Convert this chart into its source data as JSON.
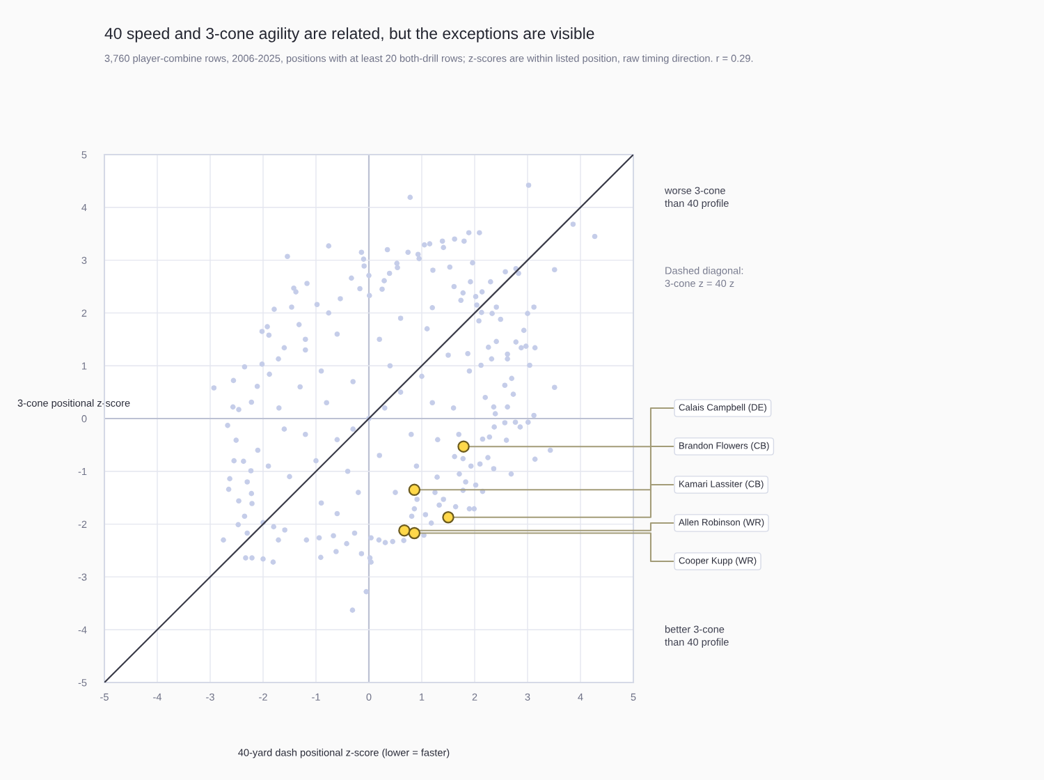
{
  "chart_data": {
    "type": "scatter",
    "title": "40 speed and 3-cone agility are related, but the exceptions are visible",
    "subtitle": "3,760 player-combine rows, 2006-2025, positions with at least 20 both-drill rows; z-scores are within listed position, raw timing direction. r = 0.29.",
    "xlabel": "40-yard dash positional z-score (lower = faster)",
    "ylabel": "3-cone positional z-score",
    "xlim": [
      -5,
      5
    ],
    "ylim": [
      -5,
      5
    ],
    "xticks": [
      -5,
      -4,
      -3,
      -2,
      -1,
      0,
      1,
      2,
      3,
      4,
      5
    ],
    "yticks": [
      -5,
      -4,
      -3,
      -2,
      -1,
      0,
      1,
      2,
      3,
      4,
      5
    ],
    "grid": true,
    "marker": "circle",
    "series": [
      {
        "color": "#c5cde9",
        "x": [
          -0.76,
          -1.54,
          -0.14,
          -1.17,
          -1.42,
          -1.38,
          -1.79,
          -1.46,
          -2.02,
          -1.92,
          -1.89,
          -2.35,
          -2.56,
          -2.93,
          -2.57,
          -2.46,
          -2.22,
          -2.02,
          -1.6,
          -0.98,
          -0.54,
          -0.33,
          -0.17,
          -0.1,
          -0.09,
          -0.76,
          -1.32,
          -1.2,
          -1.71,
          -1.88,
          -2.11,
          3.02,
          0.78,
          3.86,
          4.27,
          1.89,
          2.09,
          1.62,
          1.8,
          1.39,
          1.41,
          1.05,
          1.15,
          0.35,
          0.74,
          0.93,
          0.95,
          1.96,
          3.51,
          2.78,
          2.83,
          2.58,
          1.53,
          3.12,
          3.0,
          2.3,
          1.92,
          1.78,
          2.14,
          2.41,
          2.49,
          2.93,
          3.14,
          2.97,
          2.88,
          2.78,
          3.04,
          3.51,
          3.12,
          2.62,
          2.62,
          2.7,
          2.73,
          2.57,
          2.36,
          2.62,
          2.02,
          2.04,
          1.74,
          1.61,
          1.21,
          0.53,
          0.54,
          0.29,
          0.39,
          0.25,
          0.0,
          0.01,
          2.33,
          2.13,
          2.08,
          2.32,
          2.12,
          1.87,
          2.26,
          2.41,
          2.39,
          -2.75,
          -2.33,
          -2.21,
          -2.0,
          -1.81,
          -2.47,
          -2.3,
          -1.71,
          -1.59,
          -0.91,
          -0.31,
          -0.05,
          -0.42,
          -0.14,
          -0.62,
          -1.18,
          -0.94,
          -0.67,
          -0.27,
          -2.65,
          -2.63,
          -2.67,
          -2.51,
          -2.55,
          -2.37,
          -2.23,
          -2.46,
          -2.35,
          -2.22,
          -2.21,
          -2.0,
          -1.8,
          3.43,
          3.14,
          3.01,
          2.77,
          2.57,
          2.86,
          2.6,
          2.69,
          2.36,
          2.25,
          2.15,
          2.02,
          2.1,
          1.99,
          1.9,
          2.37,
          2.28,
          2.15,
          1.64,
          1.78,
          1.83,
          1.71,
          1.93,
          1.18,
          1.04,
          0.66,
          0.45,
          0.31,
          0.19,
          0.04,
          0.04,
          0.02,
          1.07,
          1.41,
          1.33,
          0.81,
          0.86,
          0.91,
          1.25,
          1.29,
          1.78,
          1.62,
          0.0,
          0.3,
          -0.3,
          0.6,
          -0.6,
          1.0,
          -1.0,
          1.2,
          -1.2,
          0.4,
          -0.4,
          0.8,
          -0.8,
          1.5,
          -1.5,
          0.2,
          -0.2,
          1.6,
          -1.6,
          0.9,
          -0.9,
          1.9,
          -1.9,
          0.6,
          -0.6,
          2.2,
          -2.1,
          1.3,
          1.1,
          -1.2,
          -1.3,
          0.2,
          -0.3,
          1.7,
          -1.7,
          -2.3,
          0.5,
          -0.9,
          1.2,
          -0.6
        ],
        "values": [
          3.27,
          3.07,
          3.15,
          2.56,
          2.47,
          2.4,
          2.07,
          2.11,
          1.65,
          1.74,
          1.58,
          0.98,
          0.72,
          0.58,
          0.22,
          0.17,
          0.31,
          1.03,
          1.34,
          2.16,
          2.27,
          2.66,
          2.46,
          3.02,
          2.89,
          2.0,
          1.78,
          1.5,
          1.13,
          0.84,
          0.61,
          4.42,
          4.19,
          3.68,
          3.45,
          3.52,
          3.52,
          3.4,
          3.36,
          3.36,
          3.24,
          3.29,
          3.31,
          3.2,
          3.15,
          3.11,
          3.03,
          2.95,
          2.82,
          2.84,
          2.75,
          2.78,
          2.87,
          2.11,
          1.99,
          2.59,
          2.59,
          2.38,
          2.4,
          2.11,
          1.88,
          1.67,
          1.34,
          1.37,
          1.34,
          1.45,
          1.01,
          0.59,
          0.06,
          1.22,
          1.13,
          0.76,
          0.46,
          0.63,
          0.22,
          0.22,
          2.31,
          2.15,
          2.24,
          2.5,
          2.81,
          2.94,
          2.86,
          2.61,
          2.75,
          2.45,
          2.71,
          2.33,
          1.99,
          2.01,
          1.85,
          1.13,
          1.01,
          1.23,
          1.35,
          1.46,
          0.09,
          -2.3,
          -2.64,
          -2.64,
          -2.66,
          -2.72,
          -2.01,
          -2.17,
          -2.3,
          -2.11,
          -2.63,
          -3.63,
          -3.28,
          -2.37,
          -2.56,
          -2.52,
          -2.3,
          -2.26,
          -2.22,
          -2.17,
          -1.34,
          -1.14,
          -0.13,
          -0.41,
          -0.8,
          -0.81,
          -0.99,
          -1.56,
          -1.85,
          -1.42,
          -1.61,
          -1.97,
          -2.05,
          -0.6,
          -0.77,
          -0.07,
          -0.07,
          -0.08,
          -0.16,
          -0.41,
          -1.05,
          -0.95,
          -0.74,
          -1.38,
          -1.26,
          -0.86,
          -1.71,
          -1.71,
          -0.16,
          -0.35,
          -0.39,
          -1.67,
          -1.36,
          -1.2,
          -1.05,
          -0.9,
          -1.98,
          -2.21,
          -2.31,
          -2.33,
          -2.35,
          -2.3,
          -2.26,
          -2.72,
          -2.64,
          -1.82,
          -1.53,
          -1.64,
          -1.85,
          -1.71,
          -1.53,
          -1.4,
          -1.11,
          -0.76,
          -0.72,
          0.0,
          0.2,
          -0.2,
          0.5,
          -0.4,
          0.8,
          -0.8,
          0.3,
          -0.3,
          1.0,
          -1.0,
          -0.3,
          0.3,
          1.2,
          -1.1,
          1.5,
          -1.4,
          0.2,
          -0.2,
          -0.9,
          0.9,
          0.9,
          -0.9,
          1.9,
          -1.8,
          0.4,
          -0.6,
          -0.4,
          1.7,
          1.3,
          0.6,
          -0.7,
          0.7,
          -0.3,
          0.2,
          -1.2,
          -1.4,
          -1.6,
          2.1,
          1.6
        ]
      },
      {
        "type": "line",
        "color": "#3a3b48",
        "marker": "none",
        "line_style": "solid",
        "x": [
          -5,
          5
        ],
        "values": [
          -5,
          5
        ]
      }
    ],
    "annotations": [
      {
        "text": "Calais Campbell (DE)",
        "x": 1.79,
        "y": -0.53
      },
      {
        "text": "Brandon Flowers (CB)",
        "x": 0.86,
        "y": -1.35
      },
      {
        "text": "Kamari Lassiter (CB)",
        "x": 1.5,
        "y": -1.87
      },
      {
        "text": "Allen Robinson (WR)",
        "x": 0.67,
        "y": -2.12
      },
      {
        "text": "Cooper Kupp (WR)",
        "x": 0.86,
        "y": -2.17
      },
      "worse 3-cone\nthan 40 profile",
      "Dashed diagonal:\n3-cone z = 40 z",
      "better 3-cone\nthan 40 profile"
    ]
  }
}
